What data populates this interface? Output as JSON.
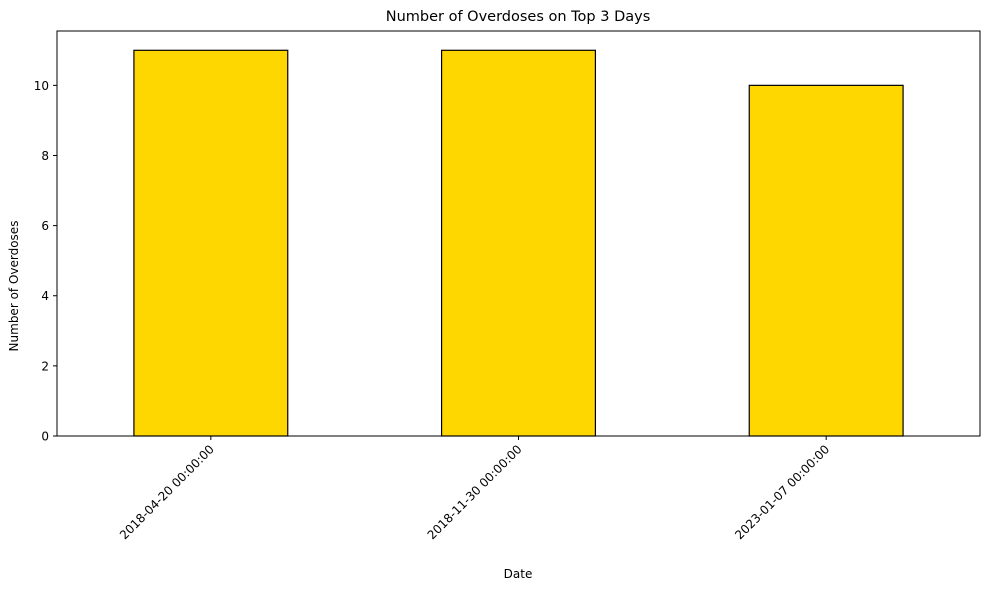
{
  "chart_data": {
    "type": "bar",
    "title": "Number of Overdoses on Top 3 Days",
    "xlabel": "Date",
    "ylabel": "Number of Overdoses",
    "categories": [
      "2018-04-20 00:00:00",
      "2018-11-30 00:00:00",
      "2023-01-07 00:00:00"
    ],
    "values": [
      11,
      11,
      10
    ],
    "ylim": [
      0,
      11.55
    ],
    "yticks": [
      0,
      2,
      4,
      6,
      8,
      10
    ],
    "grid": false,
    "legend": "none",
    "colors": {
      "bar_fill": "#FFD700",
      "bar_edge": "#000000",
      "axis": "#000000",
      "background": "#FFFFFF"
    }
  }
}
